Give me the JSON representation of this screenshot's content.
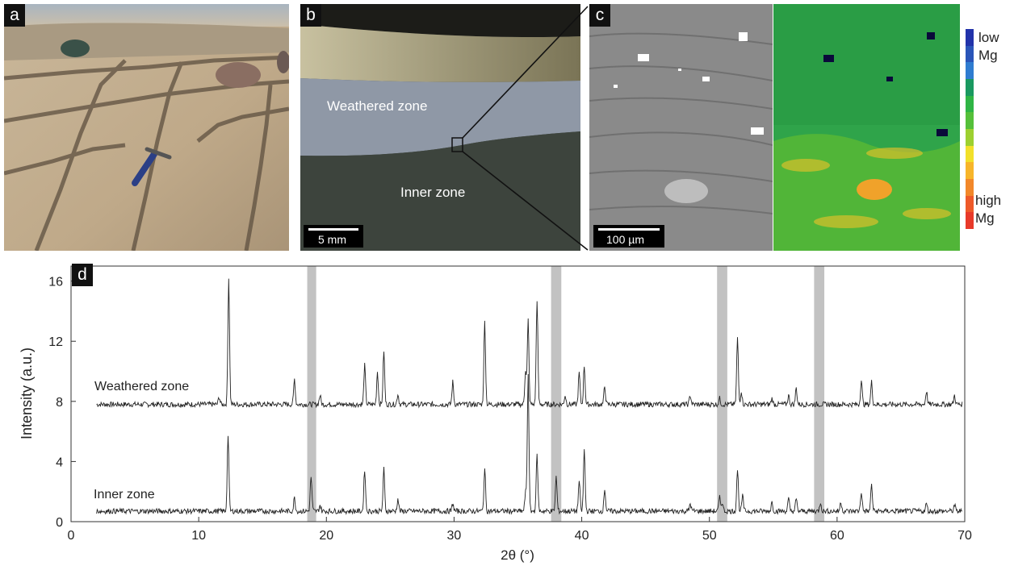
{
  "panels": {
    "a": {
      "label": "a"
    },
    "b": {
      "label": "b",
      "weathered_label": "Weathered zone",
      "inner_label": "Inner zone",
      "scale": "5 mm"
    },
    "c": {
      "label": "c",
      "scale": "100 µm",
      "colorbar": {
        "top_label_1": "low",
        "top_label_2": "Mg",
        "bottom_label_1": "high",
        "bottom_label_2": "Mg",
        "colors": [
          "#2233aa",
          "#2a55b8",
          "#2f7cd0",
          "#1a9960",
          "#2fb545",
          "#55c03a",
          "#9dd030",
          "#f2e02a",
          "#f7b52a",
          "#f2882a",
          "#ee5a2a",
          "#e83a2a"
        ]
      }
    },
    "d": {
      "label": "d"
    }
  },
  "chart_data": {
    "type": "line",
    "xlabel": "2θ (°)",
    "ylabel": "Intensity (a.u.)",
    "xlim": [
      0,
      70
    ],
    "ylim": [
      0,
      17
    ],
    "xticks": [
      0,
      10,
      20,
      30,
      40,
      50,
      60,
      70
    ],
    "yticks": [
      0,
      4,
      8,
      12,
      16
    ],
    "shaded_bands": [
      [
        18.5,
        19.2
      ],
      [
        37.6,
        38.4
      ],
      [
        50.6,
        51.4
      ],
      [
        58.2,
        59.0
      ]
    ],
    "series": [
      {
        "name": "Weathered zone",
        "baseline": 7.8,
        "peaks": [
          [
            11.6,
            0.5
          ],
          [
            12.35,
            8.4
          ],
          [
            17.5,
            1.7
          ],
          [
            19.5,
            0.6
          ],
          [
            23.0,
            2.6
          ],
          [
            24.0,
            2.2
          ],
          [
            24.5,
            3.6
          ],
          [
            25.6,
            0.7
          ],
          [
            29.9,
            1.5
          ],
          [
            32.4,
            5.5
          ],
          [
            35.6,
            2.3
          ],
          [
            35.8,
            5.6
          ],
          [
            36.5,
            7.0
          ],
          [
            38.7,
            0.6
          ],
          [
            39.8,
            2.1
          ],
          [
            40.2,
            2.6
          ],
          [
            41.8,
            1.2
          ],
          [
            48.5,
            0.6
          ],
          [
            50.8,
            0.4
          ],
          [
            52.2,
            4.4
          ],
          [
            52.5,
            0.9
          ],
          [
            54.9,
            0.4
          ],
          [
            56.2,
            0.6
          ],
          [
            56.8,
            1.1
          ],
          [
            61.9,
            1.6
          ],
          [
            62.7,
            1.5
          ],
          [
            67.0,
            0.9
          ],
          [
            69.2,
            0.6
          ]
        ]
      },
      {
        "name": "Inner zone",
        "baseline": 0.7,
        "peaks": [
          [
            12.3,
            5.1
          ],
          [
            17.5,
            0.9
          ],
          [
            18.8,
            2.3
          ],
          [
            19.5,
            0.4
          ],
          [
            23.0,
            2.8
          ],
          [
            24.5,
            2.8
          ],
          [
            25.6,
            0.8
          ],
          [
            29.9,
            0.5
          ],
          [
            32.4,
            2.8
          ],
          [
            35.6,
            1.2
          ],
          [
            35.8,
            9.1
          ],
          [
            36.5,
            3.7
          ],
          [
            38.0,
            2.3
          ],
          [
            39.8,
            2.0
          ],
          [
            40.2,
            4.1
          ],
          [
            41.8,
            1.5
          ],
          [
            48.5,
            0.5
          ],
          [
            50.8,
            0.9
          ],
          [
            51.0,
            0.6
          ],
          [
            52.2,
            2.8
          ],
          [
            52.6,
            1.0
          ],
          [
            54.9,
            0.6
          ],
          [
            56.2,
            0.8
          ],
          [
            56.8,
            0.8
          ],
          [
            58.7,
            0.6
          ],
          [
            60.3,
            0.6
          ],
          [
            61.9,
            1.3
          ],
          [
            62.7,
            1.8
          ],
          [
            67.0,
            0.5
          ],
          [
            69.2,
            0.4
          ]
        ]
      }
    ]
  }
}
